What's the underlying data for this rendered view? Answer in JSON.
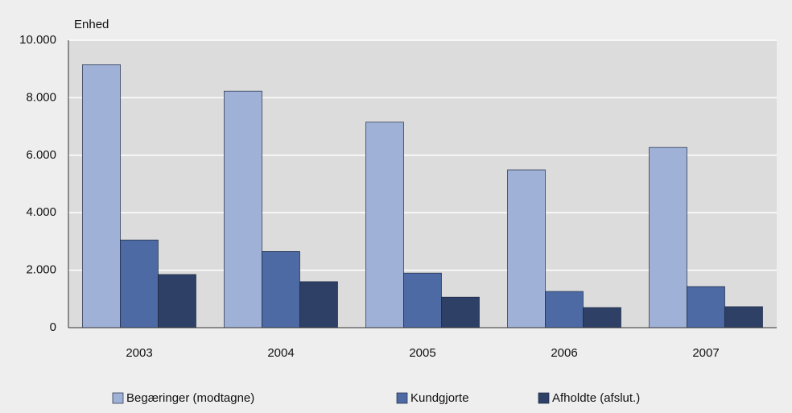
{
  "chart_data": {
    "type": "bar",
    "y_label": "Enhed",
    "categories": [
      "2003",
      "2004",
      "2005",
      "2006",
      "2007"
    ],
    "series": [
      {
        "name": "Begæringer (modtagne)",
        "color": "#9fb1d6",
        "values": [
          9150,
          8230,
          7150,
          5490,
          6270
        ]
      },
      {
        "name": "Kundgjorte",
        "color": "#4d6aa5",
        "values": [
          3050,
          2650,
          1900,
          1260,
          1430
        ]
      },
      {
        "name": "Afholdte (afslut.)",
        "color": "#2e4066",
        "values": [
          1850,
          1600,
          1060,
          700,
          730
        ]
      }
    ],
    "ylim": [
      0,
      10000
    ],
    "yticks": [
      0,
      {
        "value": 2000,
        "label": "2.000"
      },
      {
        "value": 4000,
        "label": "4.000"
      },
      {
        "value": 6000,
        "label": "6.000"
      },
      {
        "value": 8000,
        "label": "8.000"
      },
      {
        "value": 10000,
        "label": "10.000"
      }
    ],
    "grid": true,
    "legend": "bottom"
  }
}
